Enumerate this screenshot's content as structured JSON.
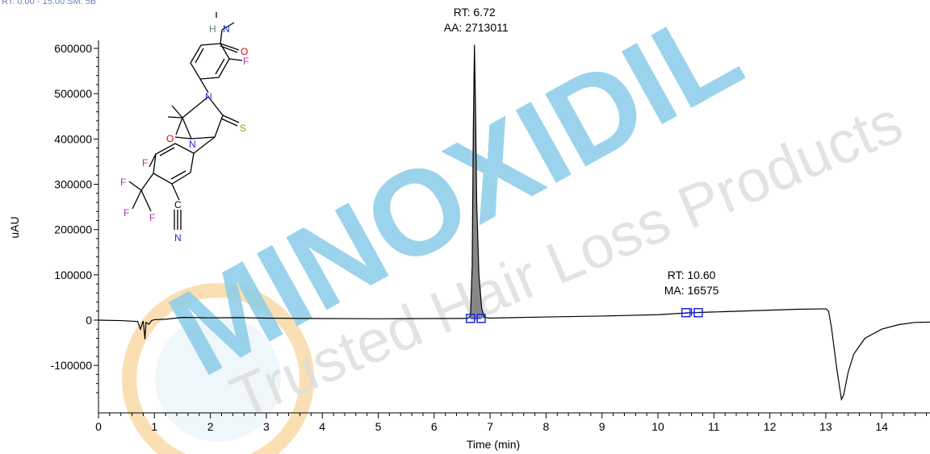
{
  "header_text": "RT: 0.00 - 15.00 SM: 5B",
  "watermark": {
    "line1": "MINOXIDIL",
    "line2": "Trusted Hair Loss Products",
    "color": "#2aa3d6"
  },
  "chart_data": {
    "type": "line",
    "title": "",
    "xlabel": "Time (min)",
    "ylabel": "uAU",
    "xlim": [
      0,
      15
    ],
    "ylim": [
      -180000,
      620000
    ],
    "x_ticks": [
      0,
      1,
      2,
      3,
      4,
      5,
      6,
      7,
      8,
      9,
      10,
      11,
      12,
      13,
      14
    ],
    "y_ticks": [
      600000,
      500000,
      400000,
      300000,
      200000,
      100000,
      0,
      -100000
    ],
    "y_tick_labels": [
      "600000",
      "500000",
      "400000",
      "300000",
      "200000",
      "100000",
      "0",
      "-100000"
    ],
    "line_color": "#000000",
    "fill_color": "#888888",
    "series": [
      {
        "values": [
          [
            0,
            0
          ],
          [
            0.4,
            -1000
          ],
          [
            0.7,
            -3000
          ],
          [
            0.75,
            -20000
          ],
          [
            0.78,
            -8000
          ],
          [
            0.8,
            -2000
          ],
          [
            0.83,
            -42000
          ],
          [
            0.85,
            -5000
          ],
          [
            0.9,
            -9000
          ],
          [
            0.95,
            -1000
          ],
          [
            1.0,
            1000
          ],
          [
            1.2,
            2000
          ],
          [
            1.5,
            6000
          ],
          [
            2.0,
            5000
          ],
          [
            2.5,
            5500
          ],
          [
            3.0,
            4500
          ],
          [
            4.0,
            3500
          ],
          [
            5.0,
            3000
          ],
          [
            6.0,
            3500
          ],
          [
            6.5,
            3800
          ],
          [
            6.6,
            4000
          ],
          [
            6.65,
            10000
          ],
          [
            6.68,
            120000
          ],
          [
            6.7,
            420000
          ],
          [
            6.72,
            608000
          ],
          [
            6.74,
            460000
          ],
          [
            6.76,
            260000
          ],
          [
            6.8,
            100000
          ],
          [
            6.85,
            25000
          ],
          [
            6.9,
            6000
          ],
          [
            7.0,
            4500
          ],
          [
            8.0,
            7000
          ],
          [
            9.0,
            9000
          ],
          [
            10.0,
            12000
          ],
          [
            10.6,
            16500
          ],
          [
            11.0,
            18000
          ],
          [
            12.0,
            22000
          ],
          [
            12.5,
            24000
          ],
          [
            13.0,
            25000
          ],
          [
            13.05,
            20000
          ],
          [
            13.1,
            -15000
          ],
          [
            13.2,
            -110000
          ],
          [
            13.28,
            -175000
          ],
          [
            13.32,
            -165000
          ],
          [
            13.4,
            -115000
          ],
          [
            13.5,
            -75000
          ],
          [
            13.7,
            -40000
          ],
          [
            14.0,
            -20000
          ],
          [
            14.3,
            -10000
          ],
          [
            14.6,
            -5000
          ],
          [
            15.0,
            -4000
          ]
        ]
      }
    ],
    "annotations": [
      {
        "rt_label": "RT: 6.72",
        "area_label": "AA: 2713011",
        "x": 6.72,
        "marker_start": 6.65,
        "marker_end": 6.84
      },
      {
        "rt_label": "RT: 10.60",
        "area_label": "MA: 16575",
        "x": 10.6,
        "marker_start": 10.5,
        "marker_end": 10.72
      }
    ]
  },
  "structure": {
    "atom_labels": {
      "H": "H",
      "N": "N",
      "O": "O",
      "F": "F",
      "S": "S",
      "C": "C"
    },
    "colors": {
      "N": "#1f2fd0",
      "O": "#e00000",
      "F": "#b030b0",
      "S": "#a59a00",
      "H": "#608090",
      "bond": "#000000"
    }
  }
}
